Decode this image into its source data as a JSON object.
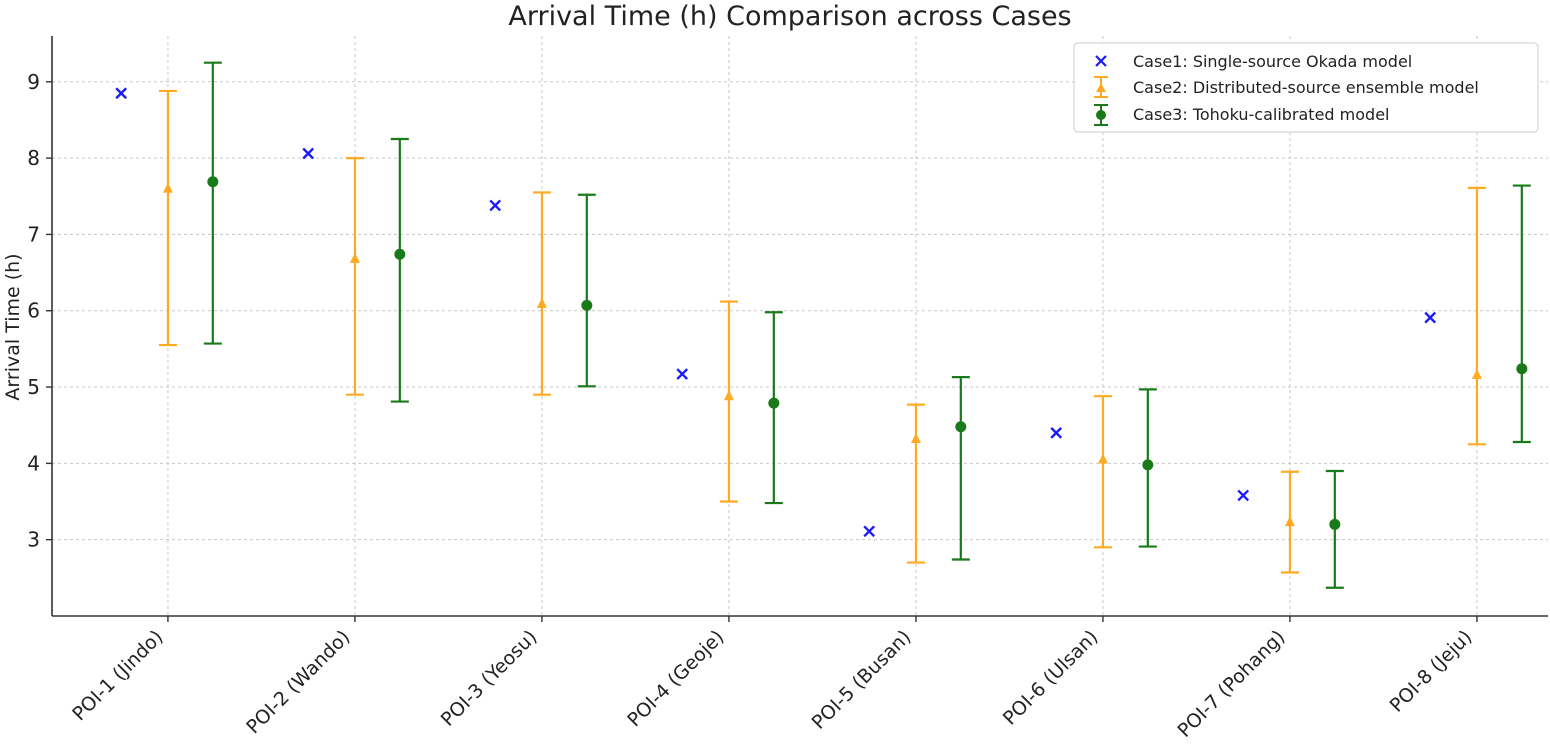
{
  "chart_data": {
    "type": "scatter",
    "title": "Arrival Time (h) Comparison across Cases",
    "xlabel": "",
    "ylabel": "Arrival Time (h)",
    "ylim": [
      2.0,
      9.6
    ],
    "yticks": [
      3,
      4,
      5,
      6,
      7,
      8,
      9
    ],
    "grid": true,
    "legend_position": "top-right",
    "categories": [
      "POI-1 (Jindo)",
      "POI-2 (Wando)",
      "POI-3 (Yeosu)",
      "POI-4 (Geoje)",
      "POI-5 (Busan)",
      "POI-6 (Ulsan)",
      "POI-7 (Pohang)",
      "POI-8 (Jeju)"
    ],
    "series": [
      {
        "name": "Case1: Single-source Okada model",
        "marker": "x",
        "color": "#1a1aff",
        "values": [
          8.85,
          8.06,
          7.38,
          5.17,
          3.11,
          4.4,
          3.58,
          5.91
        ]
      },
      {
        "name": "Case2: Distributed-source ensemble model",
        "marker": "triangle",
        "color": "#ffaa22",
        "values": [
          7.6,
          6.68,
          6.09,
          4.88,
          4.32,
          4.05,
          3.23,
          5.16
        ],
        "lower": [
          5.55,
          4.9,
          4.9,
          3.5,
          2.7,
          2.9,
          2.57,
          4.25
        ],
        "upper": [
          8.88,
          8.0,
          7.55,
          6.12,
          4.77,
          4.88,
          3.89,
          7.61
        ]
      },
      {
        "name": "Case3: Tohoku-calibrated model",
        "marker": "circle",
        "color": "#1a7a1a",
        "values": [
          7.69,
          6.74,
          6.07,
          4.79,
          4.48,
          3.98,
          3.2,
          5.24
        ],
        "lower": [
          5.57,
          4.81,
          5.01,
          3.48,
          2.74,
          2.91,
          2.37,
          4.28
        ],
        "upper": [
          9.25,
          8.25,
          7.52,
          5.98,
          5.13,
          4.97,
          3.9,
          7.64
        ]
      }
    ]
  }
}
